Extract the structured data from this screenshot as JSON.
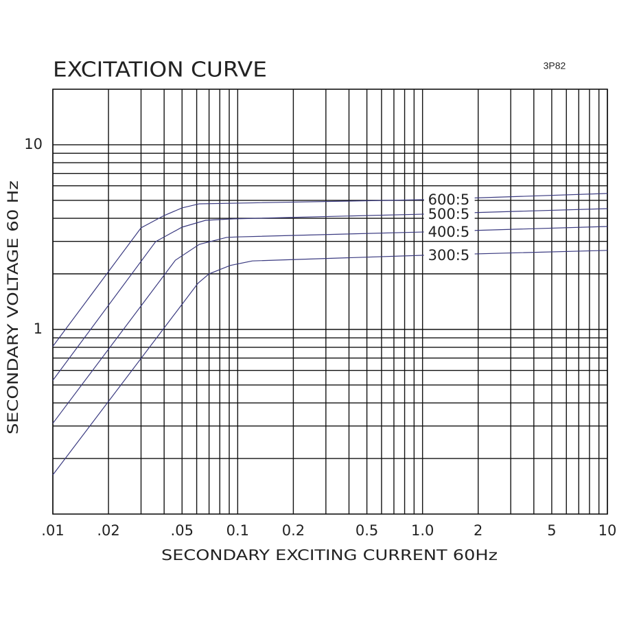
{
  "chart_data": {
    "type": "line",
    "title": "EXCITATION CURVE",
    "subtitle": "3P82",
    "x_label": "SECONDARY EXCITING CURRENT 60Hz",
    "y_label": "SECONDARY VOLTAGE 60 Hz",
    "log_x": true,
    "log_y": true,
    "grid": true,
    "xlim": [
      0.01,
      10
    ],
    "ylim": [
      0.1,
      20
    ],
    "xticks": [
      {
        "value": 0.01,
        "label": ".01"
      },
      {
        "value": 0.02,
        "label": ".02"
      },
      {
        "value": 0.05,
        "label": ".05"
      },
      0.1,
      0.2,
      0.5,
      {
        "value": 1,
        "label": "1.0"
      },
      2,
      5,
      10
    ],
    "yticks": [
      1,
      10
    ],
    "x_minor_grid": [
      0.03,
      0.04,
      0.06,
      0.07,
      0.08,
      0.09,
      0.3,
      0.4,
      0.6,
      0.7,
      0.8,
      0.9,
      3,
      4,
      6,
      7,
      8,
      9
    ],
    "y_minor_grid": [
      0.2,
      0.3,
      0.4,
      0.5,
      0.6,
      0.7,
      0.8,
      0.9,
      2,
      3,
      4,
      5,
      6,
      7,
      8,
      9
    ],
    "series": [
      {
        "name": "600:5",
        "color": "#3a3a80",
        "x": [
          0.01,
          0.03,
          0.04,
          0.05,
          0.062,
          1,
          10
        ],
        "values": [
          0.81,
          3.55,
          4.14,
          4.55,
          4.79,
          5.04,
          5.45
        ]
      },
      {
        "name": "500:5",
        "color": "#3a3a80",
        "x": [
          0.01,
          0.036,
          0.05,
          0.067,
          0.095,
          1,
          10
        ],
        "values": [
          0.53,
          2.99,
          3.58,
          3.9,
          3.97,
          4.21,
          4.51
        ]
      },
      {
        "name": "400:5",
        "color": "#3a3a80",
        "x": [
          0.01,
          0.046,
          0.062,
          0.087,
          0.1,
          1,
          10
        ],
        "values": [
          0.31,
          2.37,
          2.89,
          3.15,
          3.17,
          3.37,
          3.61
        ]
      },
      {
        "name": "300:5",
        "color": "#3a3a80",
        "x": [
          0.01,
          0.061,
          0.07,
          0.091,
          0.12,
          1,
          10
        ],
        "values": [
          0.163,
          1.78,
          2.0,
          2.22,
          2.35,
          2.52,
          2.68
        ]
      }
    ]
  }
}
